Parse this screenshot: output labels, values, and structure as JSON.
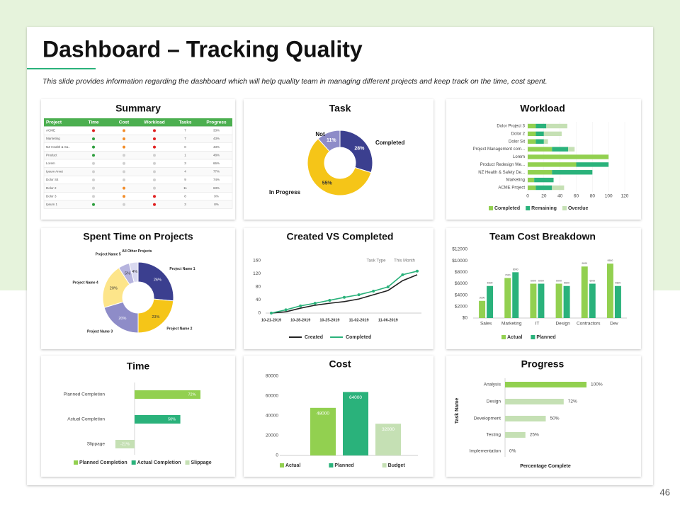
{
  "header": {
    "title": "Dashboard – Tracking Quality",
    "subtitle": "This slide provides information regarding the dashboard which will help quality team in managing different projects and keep track on the time, cost spent."
  },
  "page_number": "46",
  "chart_data": [
    {
      "type": "table",
      "title": "Summary",
      "columns": [
        "Project",
        "Time",
        "Cost",
        "Workload",
        "Tasks",
        "Progress"
      ],
      "rows": [
        {
          "project": "ACME",
          "time": "red",
          "cost": "orange",
          "workload": "red",
          "tasks": 7,
          "progress": "33%"
        },
        {
          "project": "Marketing",
          "time": "green",
          "cost": "orange",
          "workload": "red",
          "tasks": 7,
          "progress": "43%"
        },
        {
          "project": "NZ Health & Sa..",
          "time": "green",
          "cost": "orange",
          "workload": "red",
          "tasks": 0,
          "progress": "43%"
        },
        {
          "project": "Product",
          "time": "green",
          "cost": "grey",
          "workload": "grey",
          "tasks": 1,
          "progress": "48%"
        },
        {
          "project": "Lorem",
          "time": "grey",
          "cost": "grey",
          "workload": "grey",
          "tasks": 3,
          "progress": "66%"
        },
        {
          "project": "Ipsum Amet",
          "time": "grey",
          "cost": "grey",
          "workload": "grey",
          "tasks": 4,
          "progress": "77%"
        },
        {
          "project": "Dolor Sit",
          "time": "grey",
          "cost": "grey",
          "workload": "grey",
          "tasks": 9,
          "progress": "74%"
        },
        {
          "project": "Dolor 2",
          "time": "grey",
          "cost": "orange",
          "workload": "grey",
          "tasks": 11,
          "progress": "63%"
        },
        {
          "project": "Dolor 3",
          "time": "grey",
          "cost": "orange",
          "workload": "red",
          "tasks": 8,
          "progress": "9%"
        },
        {
          "project": "Ipsum 1",
          "time": "green",
          "cost": "grey",
          "workload": "red",
          "tasks": 3,
          "progress": "8%"
        }
      ]
    },
    {
      "type": "donut",
      "title": "Task",
      "categories": [
        "Completed",
        "In Progress",
        "Not"
      ],
      "values": [
        28,
        55,
        11
      ],
      "value_labels": [
        "28%",
        "55%",
        "11%"
      ],
      "colors": [
        "#3b3f8f",
        "#f5c518",
        "#8e8cc8"
      ]
    },
    {
      "type": "hbar-stacked",
      "title": "Workload",
      "categories": [
        "Dolor Project 3",
        "Dolor 2",
        "Dolor Sit",
        "Project Management com...",
        "Lorem",
        "Product Redesign We...",
        "NZ Health & Safety De...",
        "Marketing",
        "ACME Project"
      ],
      "series": [
        {
          "name": "Completed",
          "color": "#92d050",
          "values": [
            10,
            10,
            10,
            30,
            100,
            60,
            30,
            8,
            10
          ]
        },
        {
          "name": "Remaining",
          "color": "#2ab27b",
          "values": [
            13,
            10,
            10,
            20,
            0,
            40,
            50,
            24,
            20
          ]
        },
        {
          "name": "Overdue",
          "color": "#c5e0b4",
          "values": [
            26,
            22,
            5,
            8,
            0,
            0,
            0,
            0,
            15
          ]
        }
      ],
      "xlim": [
        0,
        120
      ],
      "xticks": [
        0,
        20,
        40,
        60,
        80,
        100,
        120
      ]
    },
    {
      "type": "donut-outside",
      "title": "Spent Time on Projects",
      "categories": [
        "Project Name 1",
        "Project Name 2",
        "Project Name 3",
        "Project Name 4",
        "Project Name 5",
        "All Other Projects"
      ],
      "values": [
        26,
        23,
        20,
        20,
        5,
        4
      ],
      "value_labels": [
        "26%",
        "23%",
        "20%",
        "20%",
        "5%",
        "4%"
      ],
      "colors": [
        "#3b3f8f",
        "#f5c518",
        "#8e8cc8",
        "#fde58a",
        "#b6b4de",
        "#d9d9f0"
      ]
    },
    {
      "type": "line",
      "title": "Created VS Completed",
      "categories": [
        "10-21-2019",
        null,
        "10-28-2019",
        null,
        "10-25-2019",
        null,
        "11-02-2019",
        null,
        "11-06-2019",
        null,
        null
      ],
      "series": [
        {
          "name": "Created",
          "color": "#222222",
          "values": [
            0,
            4,
            15,
            24,
            30,
            35,
            43,
            56,
            69,
            99,
            117
          ]
        },
        {
          "name": "Completed",
          "color": "#2ab27b",
          "values": [
            0,
            10,
            22,
            30,
            39,
            48,
            56,
            67,
            80,
            117,
            128
          ]
        }
      ],
      "ylim": [
        0,
        160
      ],
      "yticks": [
        0,
        40,
        80,
        120,
        160
      ],
      "annotations": [
        "Task Type",
        "This Month"
      ]
    },
    {
      "type": "bar-grouped",
      "title": "Team Cost Breakdown",
      "categories": [
        "Sales",
        "Marketing",
        "IT",
        "Design",
        "Contractors",
        "Dev"
      ],
      "series": [
        {
          "name": "Actual",
          "color": "#92d050",
          "values": [
            3000,
            7000,
            6000,
            6000,
            9000,
            9500
          ]
        },
        {
          "name": "Planned",
          "color": "#2ab27b",
          "values": [
            5600,
            8000,
            6000,
            5600,
            6000,
            5600
          ]
        }
      ],
      "ylim": [
        0,
        12000
      ],
      "yticks": [
        {
          "value": 0,
          "label": "$0"
        },
        {
          "value": 2000,
          "label": "$2000"
        },
        {
          "value": 4000,
          "label": "$4000"
        },
        {
          "value": 6000,
          "label": "$6000"
        },
        {
          "value": 8000,
          "label": "$8000"
        },
        {
          "value": 10000,
          "label": "$10000"
        },
        {
          "value": 12000,
          "label": "$12000"
        }
      ]
    },
    {
      "type": "hbar-diverging",
      "title": "Time",
      "categories": [
        "Planned Completion",
        "Actual Completion",
        "Slippage"
      ],
      "values": [
        72,
        50,
        -21
      ],
      "value_labels": [
        "72%",
        "50%",
        "-21%"
      ],
      "colors": [
        "#92d050",
        "#2ab27b",
        "#c5e0b4"
      ]
    },
    {
      "type": "bar",
      "title": "Cost",
      "categories": [
        "Actual",
        "Planned",
        "Budget"
      ],
      "values": [
        48000,
        64000,
        32000
      ],
      "colors": [
        "#92d050",
        "#2ab27b",
        "#c5e0b4"
      ],
      "ylim": [
        0,
        80000
      ],
      "yticks": [
        0,
        20000,
        40000,
        60000,
        80000
      ]
    },
    {
      "type": "hbar",
      "title": "Progress",
      "categories": [
        "Analysis",
        "Design",
        "Development",
        "Testing",
        "Implementation"
      ],
      "values": [
        100,
        72,
        50,
        25,
        0
      ],
      "value_labels": [
        "100%",
        "72%",
        "50%",
        "25%",
        "0%"
      ],
      "colors": [
        "#92d050",
        "#c5e0b4",
        "#c5e0b4",
        "#c5e0b4",
        "#c5e0b4"
      ],
      "x_label": "Percentage Complete",
      "y_label": "Task Name"
    }
  ]
}
